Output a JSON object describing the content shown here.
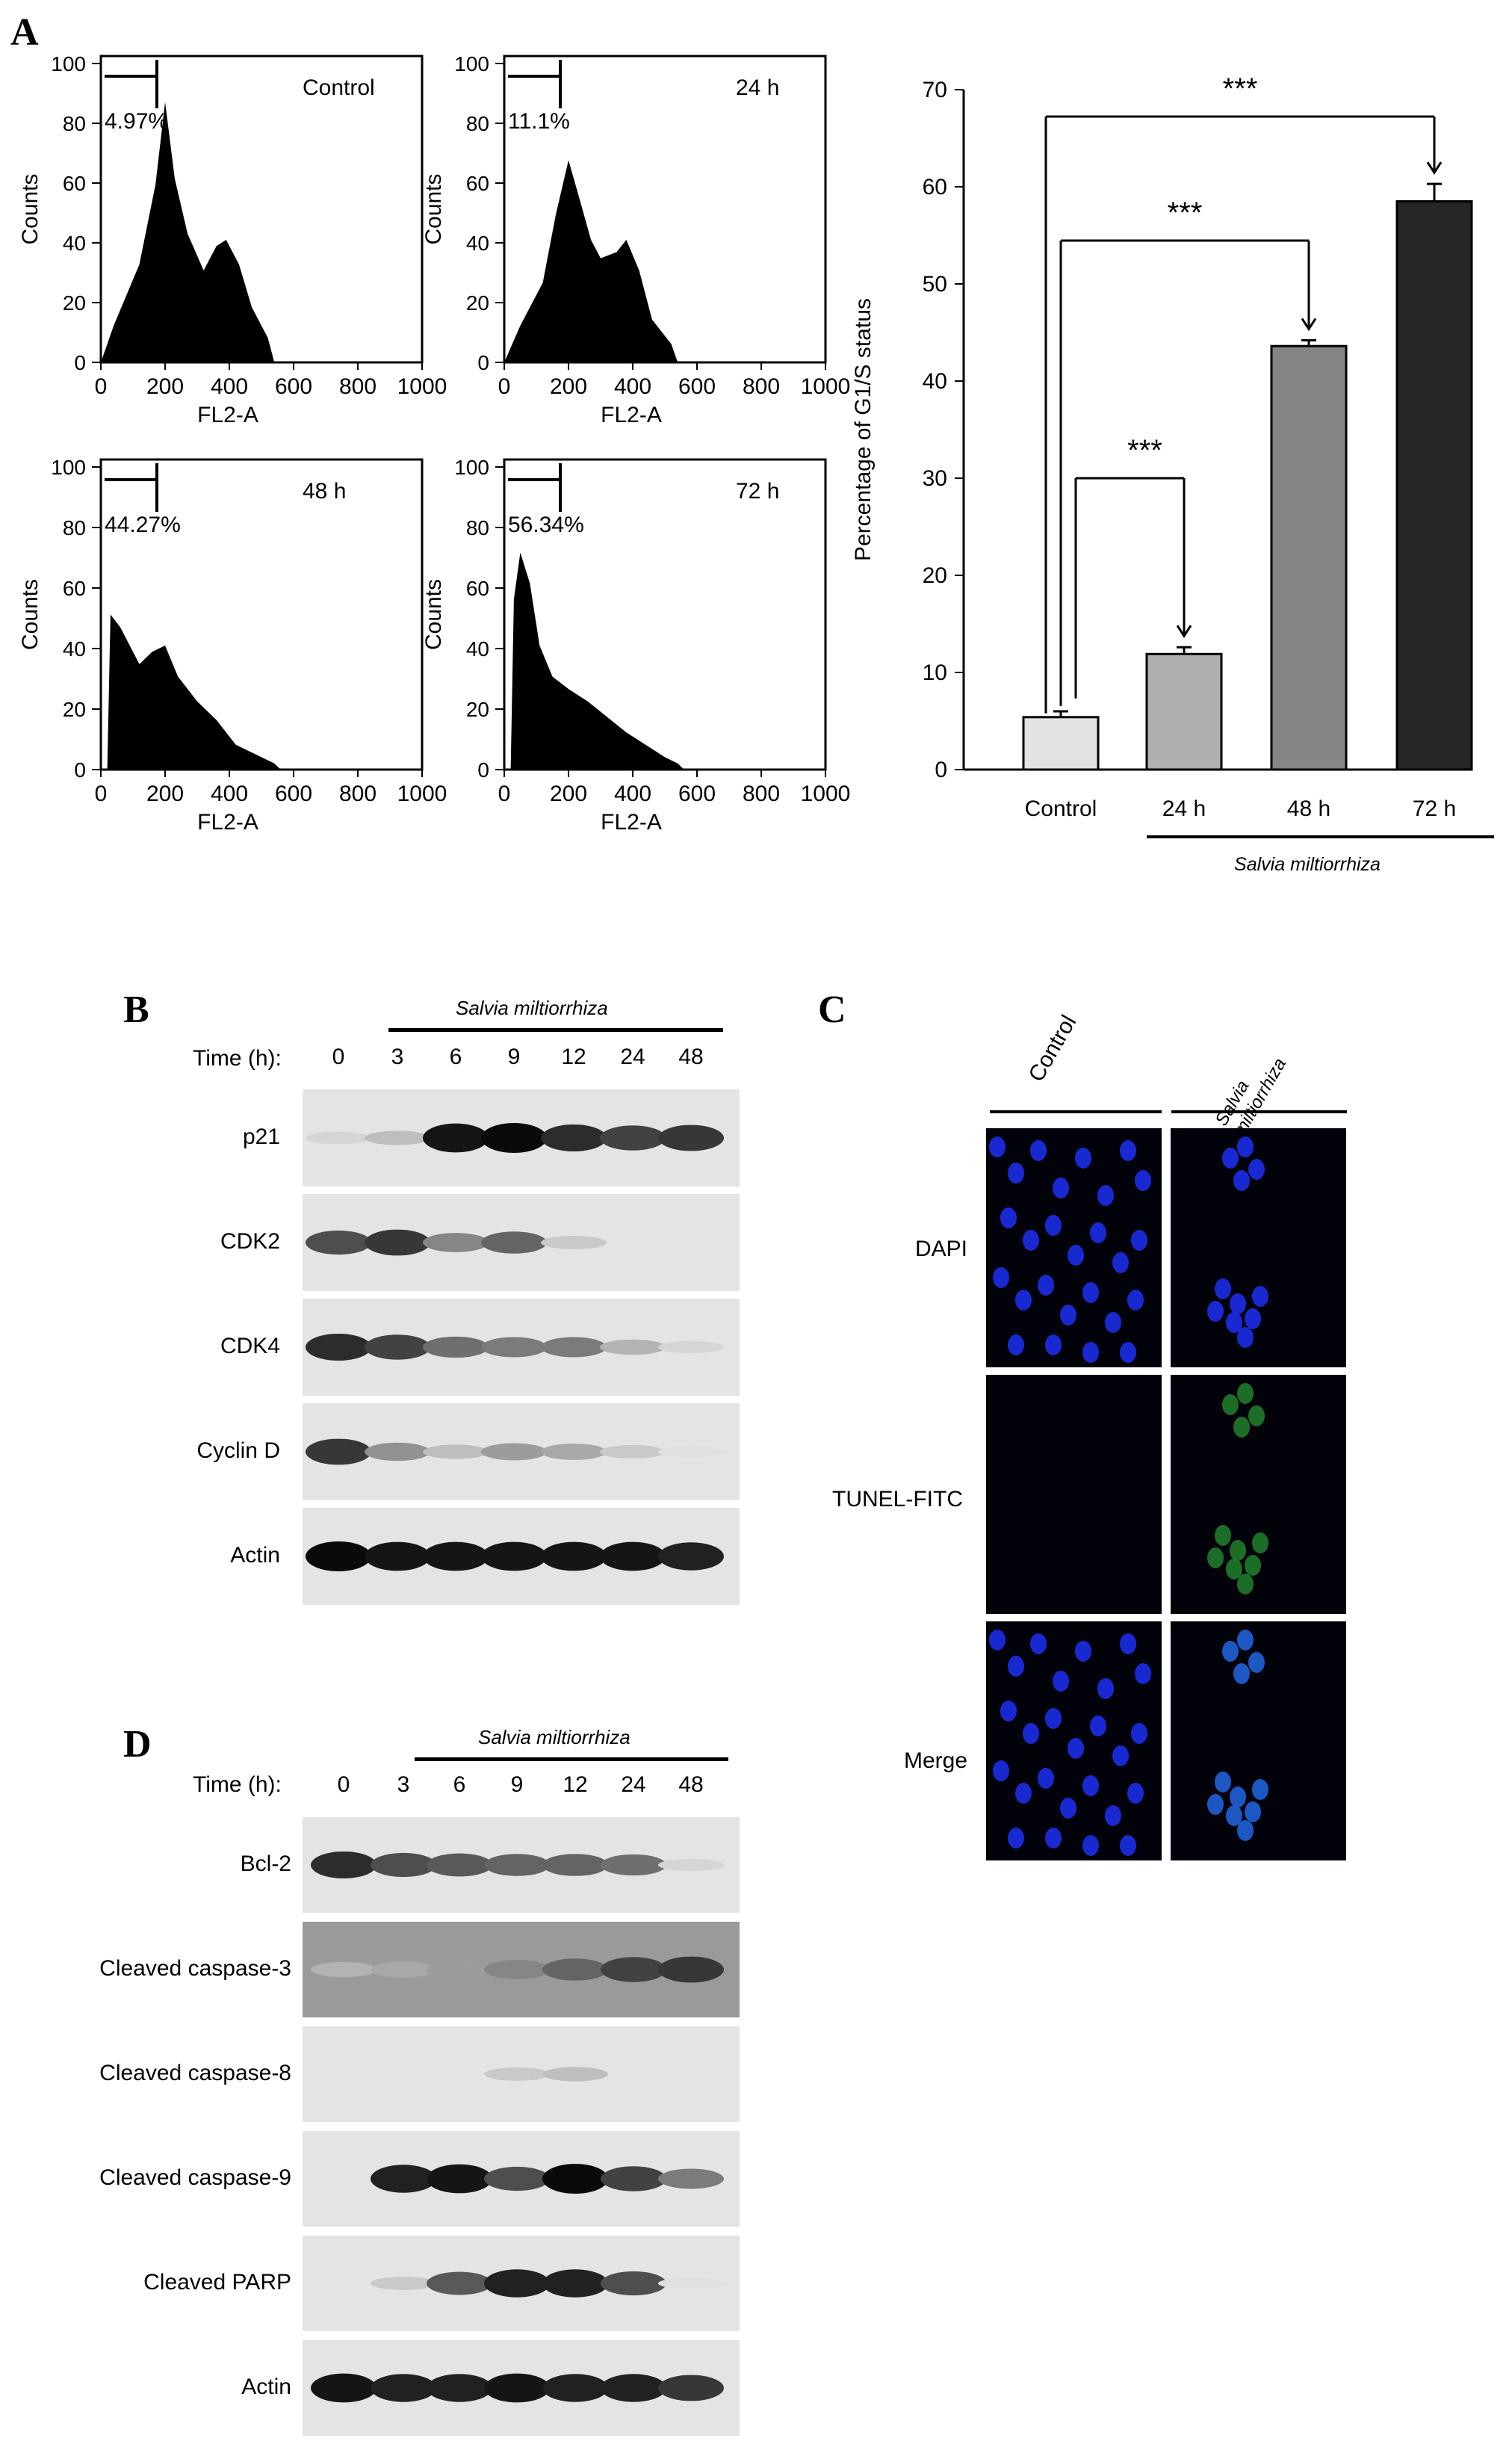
{
  "panels": {
    "a": "A",
    "b": "B",
    "c": "C",
    "d": "D"
  },
  "histograms": [
    {
      "title": "Control",
      "gate": "4.97%",
      "xlabel": "FL2-A",
      "ylabel": "Counts"
    },
    {
      "title": "24 h",
      "gate": "11.1%",
      "xlabel": "FL2-A",
      "ylabel": "Counts"
    },
    {
      "title": "48 h",
      "gate": "44.27%",
      "xlabel": "FL2-A",
      "ylabel": "Counts"
    },
    {
      "title": "72 h",
      "gate": "56.34%",
      "xlabel": "FL2-A",
      "ylabel": "Counts"
    }
  ],
  "histogram_axes": {
    "x_ticks": [
      "0",
      "200",
      "400",
      "600",
      "800",
      "1000"
    ],
    "y_ticks": [
      "0",
      "20",
      "40",
      "60",
      "80",
      "100"
    ]
  },
  "chart_data": {
    "type": "bar",
    "categories": [
      "Control",
      "24 h",
      "48 h",
      "72 h"
    ],
    "values": [
      5.4,
      11.9,
      43.6,
      58.5
    ],
    "errors": [
      0.6,
      0.7,
      0.6,
      1.8
    ],
    "colors": [
      "#e3e3e3",
      "#b0b0b0",
      "#858585",
      "#262626"
    ],
    "ylabel": "Percentage of G1/S status",
    "ylim": [
      0,
      70
    ],
    "yticks": [
      0,
      10,
      20,
      30,
      40,
      50,
      60,
      70
    ],
    "group_label": "Salvia miltiorrhiza",
    "significance": [
      {
        "from": "Control",
        "to": "24 h",
        "label": "***"
      },
      {
        "from": "Control",
        "to": "48 h",
        "label": "***"
      },
      {
        "from": "Control",
        "to": "72 h",
        "label": "***"
      }
    ]
  },
  "blot_b": {
    "treatment": "Salvia miltiorrhiza",
    "time_label": "Time (h):",
    "lanes": [
      "0",
      "3",
      "6",
      "9",
      "12",
      "24",
      "48"
    ],
    "bands": [
      {
        "label": "p21",
        "intensity": [
          0.1,
          0.2,
          0.95,
          1.0,
          0.85,
          0.75,
          0.8
        ]
      },
      {
        "label": "CDK2",
        "intensity": [
          0.7,
          0.8,
          0.45,
          0.6,
          0.15,
          0,
          0
        ]
      },
      {
        "label": "CDK4",
        "intensity": [
          0.85,
          0.75,
          0.55,
          0.5,
          0.5,
          0.25,
          0.1
        ]
      },
      {
        "label": "Cyclin D",
        "intensity": [
          0.8,
          0.4,
          0.2,
          0.35,
          0.3,
          0.15,
          0.05
        ]
      },
      {
        "label": "Actin",
        "intensity": [
          1,
          0.95,
          0.95,
          0.95,
          0.95,
          0.95,
          0.9
        ]
      }
    ]
  },
  "blot_d": {
    "treatment": "Salvia miltiorrhiza",
    "time_label": "Time (h):",
    "lanes": [
      "0",
      "3",
      "6",
      "9",
      "12",
      "24",
      "48"
    ],
    "bands": [
      {
        "label": "Bcl-2",
        "intensity": [
          0.85,
          0.7,
          0.65,
          0.6,
          0.6,
          0.55,
          0.1
        ]
      },
      {
        "label": "Cleaved caspase-3",
        "intensity": [
          0.25,
          0.3,
          0.35,
          0.45,
          0.6,
          0.75,
          0.8
        ]
      },
      {
        "label": "Cleaved caspase-8",
        "intensity": [
          0,
          0,
          0,
          0.15,
          0.2,
          0,
          0
        ]
      },
      {
        "label": "Cleaved caspase-9",
        "intensity": [
          0,
          0.9,
          0.95,
          0.7,
          1.0,
          0.75,
          0.5
        ]
      },
      {
        "label": "Cleaved PARP",
        "intensity": [
          0,
          0.15,
          0.65,
          0.9,
          0.9,
          0.7,
          0.05
        ]
      },
      {
        "label": "Actin",
        "intensity": [
          0.95,
          0.9,
          0.9,
          0.95,
          0.9,
          0.9,
          0.8
        ]
      }
    ]
  },
  "panel_c": {
    "columns": [
      "Control",
      "Salvia miltiorrhiza"
    ],
    "rows": [
      "DAPI",
      "TUNEL-FITC",
      "Merge"
    ]
  }
}
